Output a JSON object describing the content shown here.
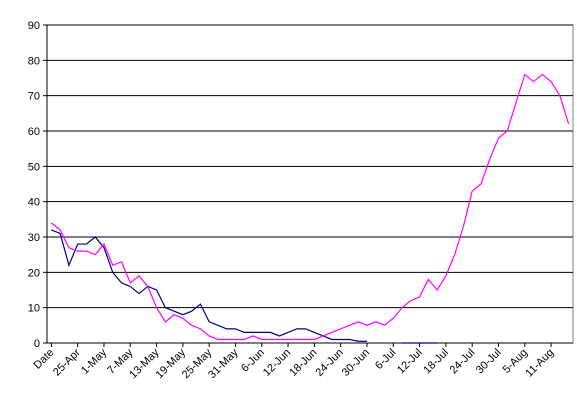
{
  "chart_data": {
    "type": "line",
    "categories": [
      "Date",
      null,
      null,
      "25-Apr",
      null,
      null,
      "1-May",
      null,
      null,
      "7-May",
      null,
      null,
      "13-May",
      null,
      null,
      "19-May",
      null,
      null,
      "25-May",
      null,
      null,
      "31-May",
      null,
      null,
      "6-Jun",
      null,
      null,
      "12-Jun",
      null,
      null,
      "18-Jun",
      null,
      null,
      "24-Jun",
      null,
      null,
      "30-Jun",
      null,
      null,
      "6-Jul",
      null,
      null,
      "12-Jul",
      null,
      null,
      "18-Jul",
      null,
      null,
      "24-Jul",
      null,
      null,
      "30-Jul",
      null,
      null,
      "5-Aug",
      null,
      null,
      "11-Aug",
      null,
      null
    ],
    "series": [
      {
        "color": "#000080",
        "values": [
          32,
          31,
          22,
          28,
          28,
          30,
          27,
          20,
          17,
          16,
          14,
          16,
          15,
          10,
          9,
          8,
          9,
          11,
          6,
          5,
          4,
          4,
          3,
          3,
          3,
          3,
          2,
          3,
          4,
          4,
          3,
          2,
          1,
          1,
          1,
          0.5,
          0.5,
          null,
          null,
          null,
          0,
          0,
          0,
          0,
          0,
          null,
          null,
          null,
          null,
          null,
          null,
          null,
          null,
          null,
          null,
          null,
          null,
          null,
          null,
          null
        ]
      },
      {
        "color": "#ff00ff",
        "values": [
          34,
          32,
          27,
          26,
          26,
          25,
          28,
          22,
          23,
          17,
          19,
          16,
          10,
          6,
          8,
          7,
          5,
          4,
          2,
          1,
          1,
          1,
          1,
          2,
          1,
          1,
          1,
          1,
          1,
          1,
          1,
          2,
          3,
          4,
          5,
          6,
          5,
          6,
          5,
          7,
          10,
          12,
          13,
          18,
          15,
          19,
          25,
          33,
          43,
          45,
          52,
          58,
          60,
          68,
          76,
          74,
          76,
          74,
          70,
          62
        ]
      }
    ],
    "ylim": [
      0,
      90
    ],
    "yticks": [
      0,
      10,
      20,
      30,
      40,
      50,
      60,
      70,
      80,
      90
    ],
    "grid": true
  }
}
